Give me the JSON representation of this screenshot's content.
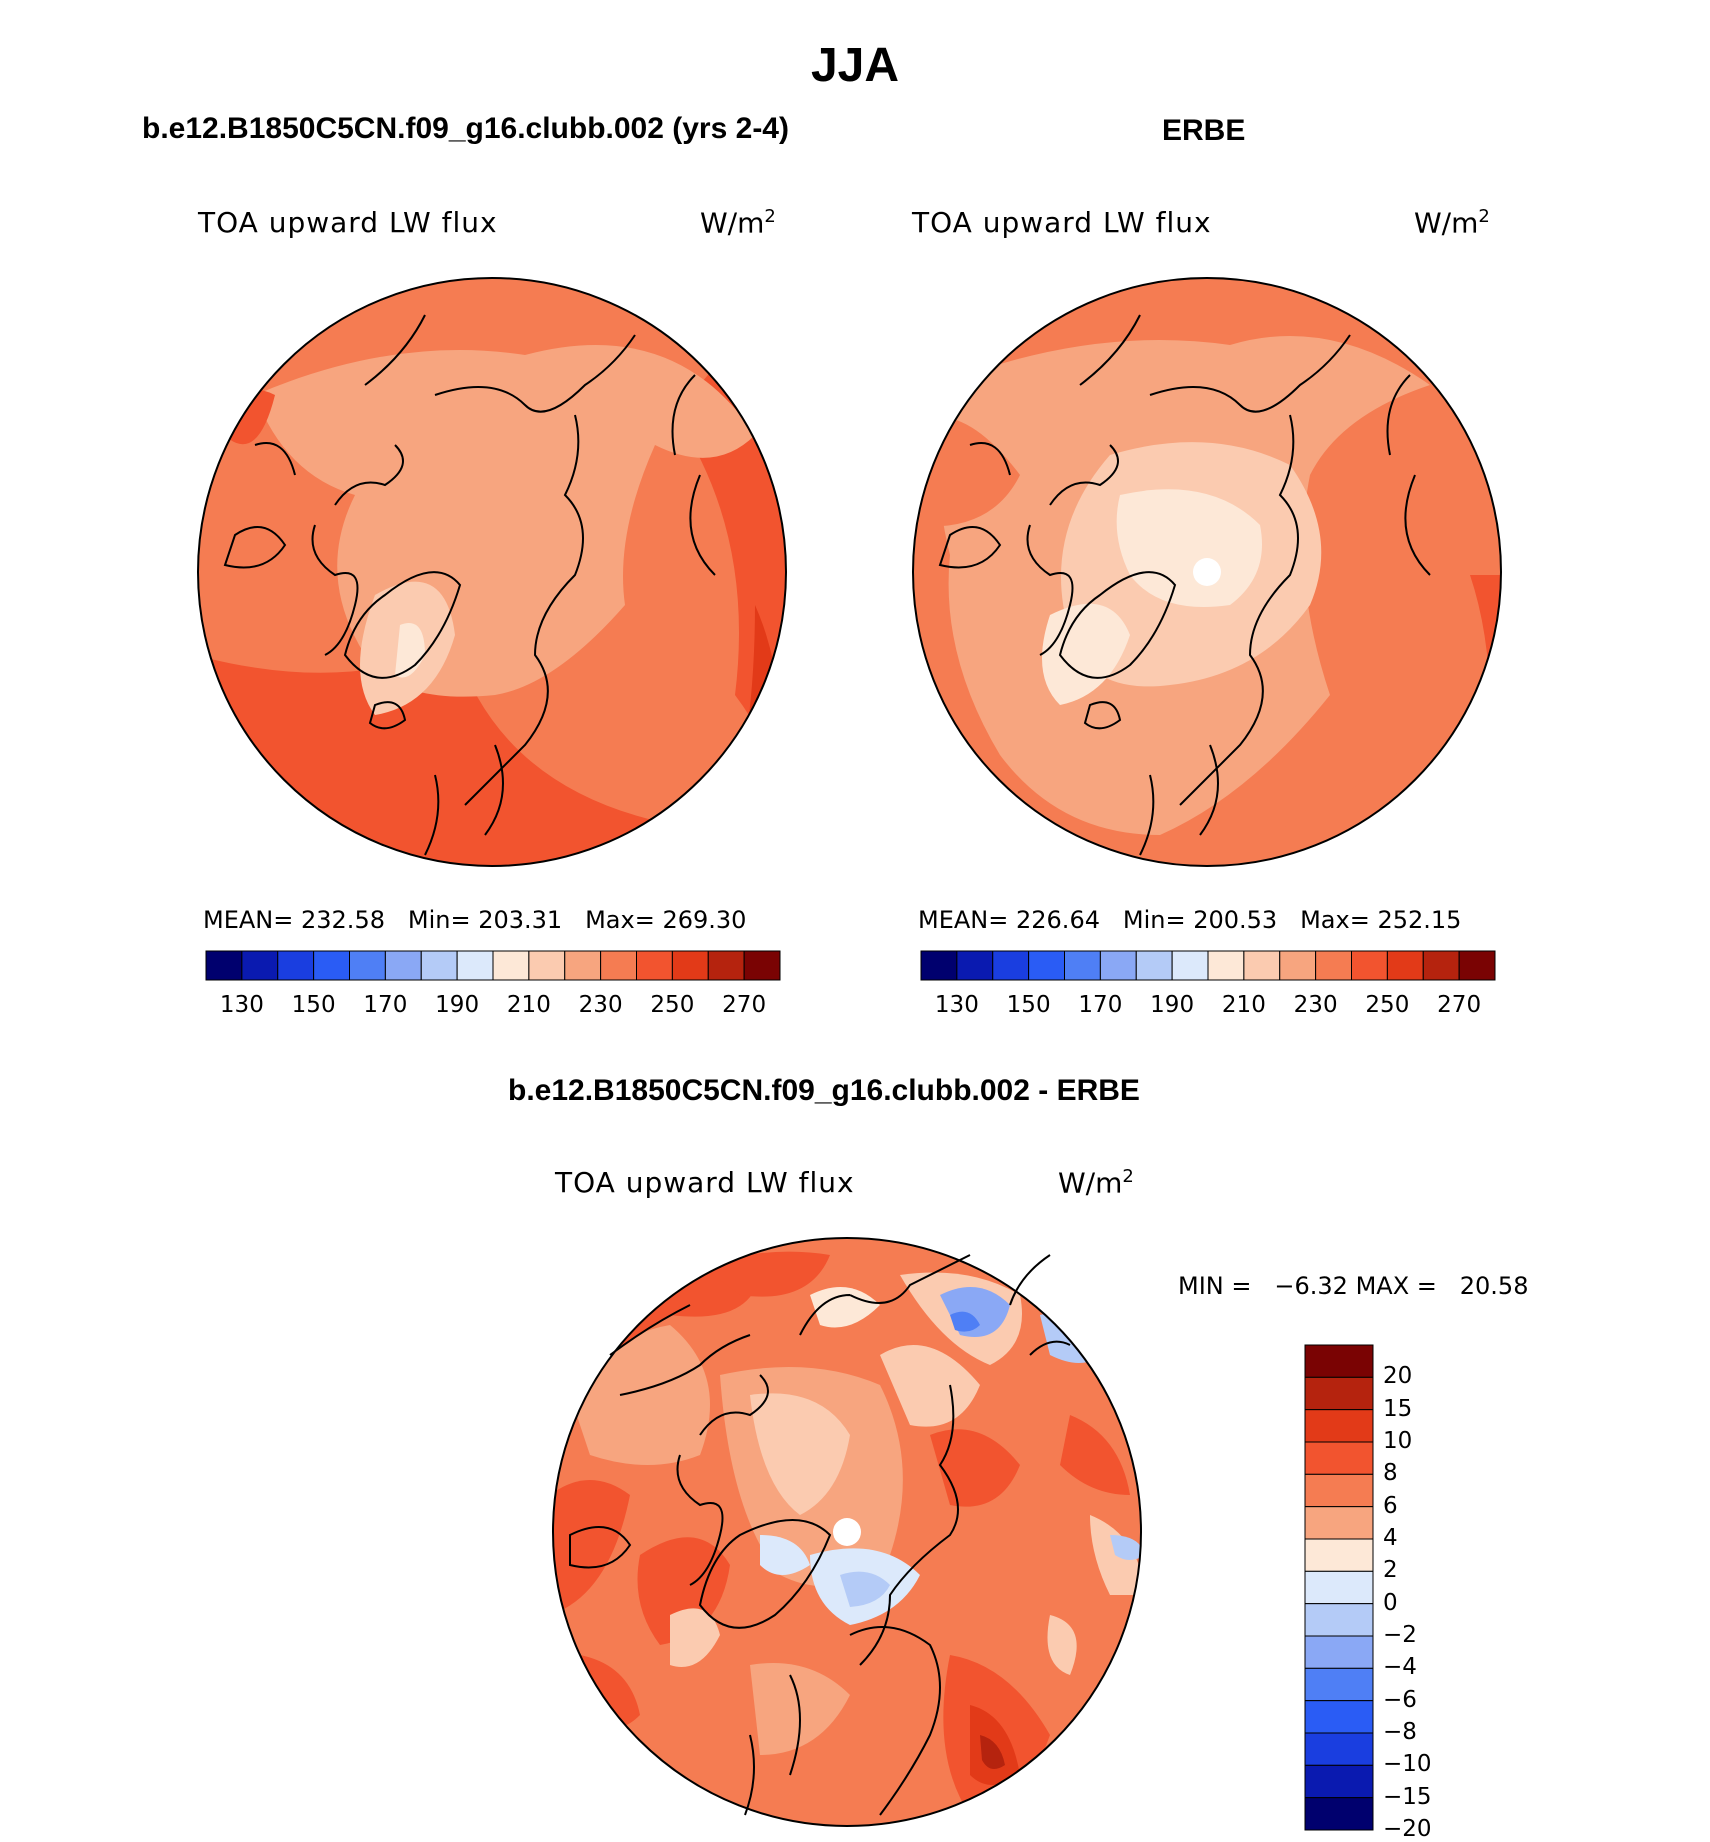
{
  "figure": {
    "season": "JJA",
    "panels": [
      {
        "id": "model",
        "title": "b.e12.B1850C5CN.f09_g16.clubb.002 (yrs 2-4)",
        "variable": "TOA upward LW flux",
        "units": "W/m",
        "units_sup": "2",
        "stats": {
          "mean_label": "MEAN=",
          "mean": "232.58",
          "min_label": "Min=",
          "min": "203.31",
          "max_label": "Max=",
          "max": "269.30"
        },
        "colorbar": {
          "colors": [
            "#00006e",
            "#0a1ab0",
            "#1a3ee0",
            "#2a5cf5",
            "#4f7ff5",
            "#8aa8f5",
            "#b4cbf7",
            "#dce9fb",
            "#fde8d7",
            "#fbcbb0",
            "#f7a57f",
            "#f57c52",
            "#f2542f",
            "#e23a18",
            "#b5230e",
            "#7a0303"
          ],
          "tick_labels": [
            "130",
            "150",
            "170",
            "190",
            "210",
            "230",
            "250",
            "270"
          ]
        }
      },
      {
        "id": "obs",
        "title": "ERBE",
        "variable": "TOA upward LW flux",
        "units": "W/m",
        "units_sup": "2",
        "stats": {
          "mean_label": "MEAN=",
          "mean": "226.64",
          "min_label": "Min=",
          "min": "200.53",
          "max_label": "Max=",
          "max": "252.15"
        },
        "colorbar": {
          "colors": [
            "#00006e",
            "#0a1ab0",
            "#1a3ee0",
            "#2a5cf5",
            "#4f7ff5",
            "#8aa8f5",
            "#b4cbf7",
            "#dce9fb",
            "#fde8d7",
            "#fbcbb0",
            "#f7a57f",
            "#f57c52",
            "#f2542f",
            "#e23a18",
            "#b5230e",
            "#7a0303"
          ],
          "tick_labels": [
            "130",
            "150",
            "170",
            "190",
            "210",
            "230",
            "250",
            "270"
          ]
        }
      },
      {
        "id": "diff",
        "title": "b.e12.B1850C5CN.f09_g16.clubb.002 - ERBE",
        "variable": "TOA upward LW flux",
        "units": "W/m",
        "units_sup": "2",
        "stats": {
          "min_label": "MIN =",
          "min": "−6.32",
          "max_label": "MAX =",
          "max": "20.58"
        },
        "colorbar": {
          "colors_top_to_bottom": [
            "#7a0303",
            "#b5230e",
            "#e23a18",
            "#f2542f",
            "#f57c52",
            "#f7a57f",
            "#fde8d7",
            "#dce9fb",
            "#b4cbf7",
            "#8aa8f5",
            "#4f7ff5",
            "#2a5cf5",
            "#1a3ee0",
            "#0a1ab0",
            "#00006e"
          ],
          "tick_labels": [
            "20",
            "15",
            "10",
            "8",
            "6",
            "4",
            "2",
            "0",
            "−2",
            "−4",
            "−6",
            "−8",
            "−10",
            "−15",
            "−20"
          ]
        }
      }
    ]
  }
}
